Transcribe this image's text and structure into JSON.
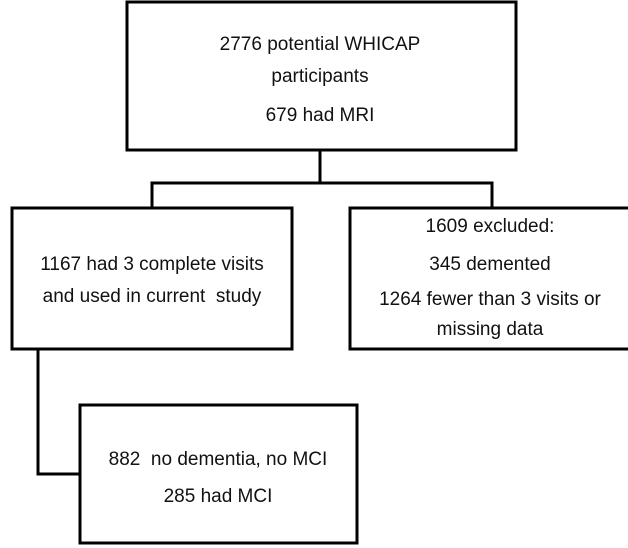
{
  "nodes": [
    {
      "lines": [
        "2776 potential WHICAP",
        "participants",
        "679 had MRI"
      ]
    },
    {
      "lines": [
        "1167 had 3 complete visits",
        "and used in current  study"
      ]
    },
    {
      "lines": [
        "1609 excluded:",
        "345 demented",
        "1264 fewer than 3 visits or",
        "missing data"
      ]
    },
    {
      "lines": [
        "882  no dementia, no MCI",
        "285 had MCI"
      ]
    }
  ]
}
